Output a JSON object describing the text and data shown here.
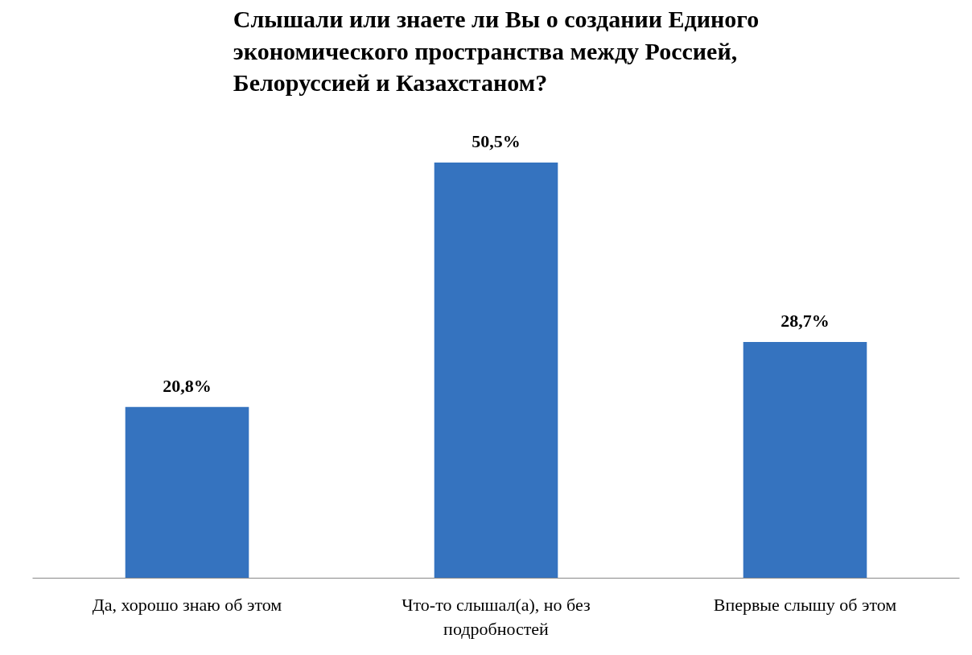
{
  "chart_data": {
    "type": "bar",
    "title": "Слышали или знаете ли Вы о создании Единого экономического пространства между Россией, Белоруссией и Казахстаном?",
    "categories": [
      "Да, хорошо знаю об этом",
      "Что-то слышал(а), но без подробностей",
      "Впервые слышу об этом"
    ],
    "values": [
      20.8,
      50.5,
      28.7
    ],
    "value_labels": [
      "20,8%",
      "50,5%",
      "28,7%"
    ],
    "color": "#3573bf",
    "tick_labels": "x",
    "grid": false
  }
}
